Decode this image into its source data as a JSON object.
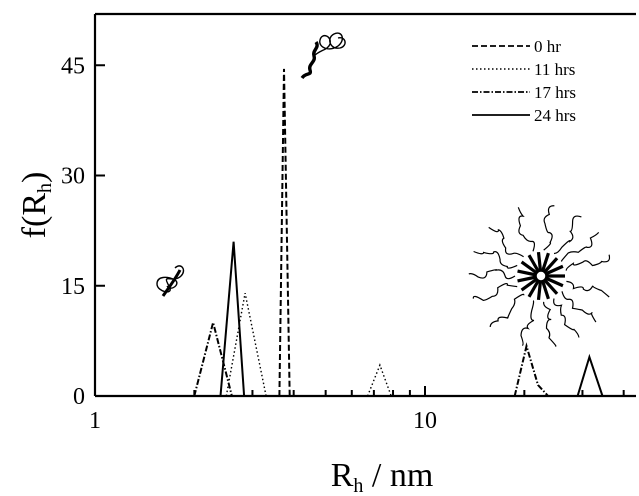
{
  "chart_data": {
    "type": "line",
    "x_scale": "log",
    "xlim": [
      1,
      40
    ],
    "ylim": [
      0,
      50
    ],
    "x_ticks": [
      {
        "value": 1,
        "label": "1"
      },
      {
        "value": 10,
        "label": "10"
      }
    ],
    "y_ticks": [
      {
        "value": 0,
        "label": "0"
      },
      {
        "value": 15,
        "label": "15"
      },
      {
        "value": 30,
        "label": "30"
      },
      {
        "value": 45,
        "label": "45"
      }
    ],
    "xlabel": {
      "main": "R",
      "sub": "h",
      "rest": " / nm"
    },
    "ylabel": {
      "main": "f(R",
      "sub": "h",
      "rest": ")"
    },
    "legend_position": "top-right",
    "grid": false,
    "series": [
      {
        "name": "0 hr",
        "dash": "dashed",
        "points": [
          [
            3.62,
            0
          ],
          [
            3.74,
            44.5
          ],
          [
            3.89,
            0
          ]
        ]
      },
      {
        "name": "11 hrs",
        "dash": "dotted",
        "points": [
          [
            2.5,
            0
          ],
          [
            2.85,
            14
          ],
          [
            3.3,
            0
          ],
          [
            6.7,
            0
          ],
          [
            7.3,
            4.2
          ],
          [
            7.9,
            0
          ]
        ]
      },
      {
        "name": "17 hrs",
        "dash": "dashdot",
        "points": [
          [
            2.0,
            0
          ],
          [
            2.28,
            10
          ],
          [
            2.6,
            0
          ],
          [
            18.7,
            0
          ],
          [
            20.3,
            6.8
          ],
          [
            22.0,
            1.5
          ],
          [
            23.6,
            0
          ]
        ]
      },
      {
        "name": "24 hrs",
        "dash": "solid",
        "points": [
          [
            2.4,
            0
          ],
          [
            2.63,
            21
          ],
          [
            2.83,
            0
          ],
          [
            29.0,
            0
          ],
          [
            31.5,
            5.3
          ],
          [
            34.5,
            0
          ]
        ]
      }
    ]
  }
}
